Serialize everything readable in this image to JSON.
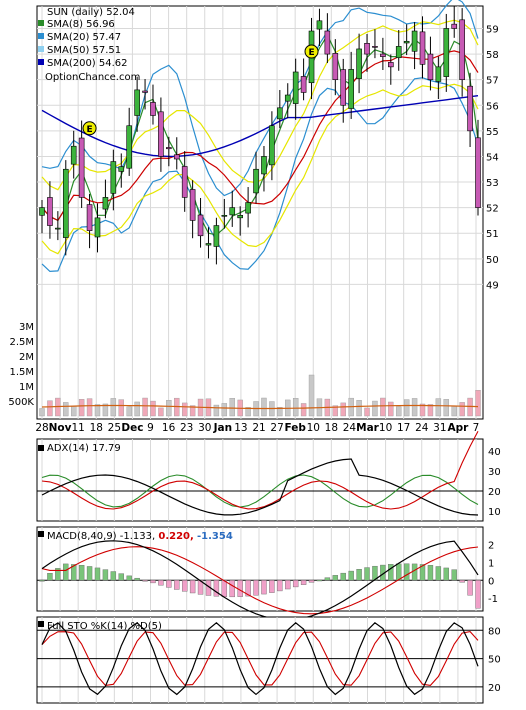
{
  "chart_data": [
    {
      "type": "candlestick",
      "panel": "price",
      "title": "SUN (daily) 52.04",
      "legend": [
        {
          "label": "SMA(8) 56.96",
          "color": "#2a8c2a"
        },
        {
          "label": "SMA(20) 57.47",
          "color": "#2b8ed0"
        },
        {
          "label": "SMA(50) 57.51",
          "color": "#8fd0f0"
        },
        {
          "label": "SMA(200) 54.62",
          "color": "#0000b4"
        }
      ],
      "source_label": "OptionChance.com",
      "ylim": [
        48,
        59.8
      ],
      "yticks": [
        49,
        50,
        51,
        52,
        53,
        54,
        55,
        56,
        57,
        58,
        59
      ],
      "xtick_labels": [
        "28",
        "Nov",
        "11",
        "18",
        "25",
        "Dec",
        "9",
        "16",
        "23",
        "30",
        "Jan",
        "13",
        "21",
        "27",
        "Feb",
        "10",
        "18",
        "24",
        "Mar",
        "10",
        "17",
        "24",
        "31",
        "Apr",
        "7"
      ],
      "close": [
        52.0,
        51.3,
        51.2,
        53.5,
        54.4,
        52.4,
        51.1,
        51.6,
        52.4,
        53.8,
        53.6,
        55.2,
        56.6,
        56.5,
        55.6,
        54.0,
        54.3,
        53.9,
        52.4,
        51.5,
        50.9,
        50.6,
        51.3,
        51.7,
        52.0,
        51.7,
        52.2,
        53.5,
        54.0,
        55.2,
        55.9,
        56.4,
        57.3,
        56.5,
        58.9,
        59.3,
        58.0,
        57.0,
        56.0,
        57.4,
        58.2,
        58.0,
        58.3,
        57.9,
        57.5,
        58.3,
        58.5,
        58.9,
        57.6,
        57.0,
        57.5,
        59.0,
        59.0,
        57.0,
        55.0,
        52.0
      ],
      "events": [
        {
          "label": "E"
        },
        {
          "label": "E"
        }
      ],
      "series": [
        {
          "name": "SMA(8)",
          "last": 56.96
        },
        {
          "name": "SMA(20)",
          "last": 57.47
        },
        {
          "name": "SMA(50)",
          "last": 57.51
        },
        {
          "name": "SMA(200)",
          "last": 54.62
        }
      ]
    },
    {
      "type": "bar",
      "panel": "volume",
      "ylim": [
        0,
        3.2
      ],
      "ytick_labels": [
        "3M",
        "2.5M",
        "2M",
        "1.5M",
        "1M",
        "500K"
      ],
      "yticks": [
        3,
        2.5,
        2,
        1.5,
        1,
        0.5
      ],
      "unit": "M shares"
    },
    {
      "type": "line",
      "panel": "adx",
      "title": "ADX(14) 17.79",
      "ylim": [
        6,
        45
      ],
      "yticks": [
        10,
        20,
        30,
        40
      ],
      "reference_line": 20
    },
    {
      "type": "line",
      "panel": "macd",
      "title_prefix": "MACD(8,40,9) -1.133,",
      "signal_value": "0.220,",
      "hist_value": "-1.354",
      "ylim": [
        -1.6,
        2.8
      ],
      "yticks": [
        -1,
        0,
        1,
        2
      ]
    },
    {
      "type": "line",
      "panel": "stochastic",
      "title": "Full STO %K(14) %D(5)",
      "ylim": [
        5,
        92
      ],
      "yticks": [
        20,
        50,
        80
      ],
      "reference_lines": [
        20,
        50,
        80
      ]
    }
  ],
  "colors": {
    "up_fill": "#3cb33c",
    "down_fill": "#c75ab4",
    "wick": "#000000",
    "bb_upper": "#e6e600",
    "bb_band": "#2b8ed0",
    "sma8": "#2a8c2a",
    "sma20": "#2b8ed0",
    "sma50": "#8fd0f0",
    "sma200": "#0000b4",
    "sma_red": "#cc0000",
    "vol_up": "#c8c8c8",
    "vol_down": "#f0a8b8",
    "vol_avg": "#d06010",
    "adx": "#000000",
    "plus_di": "#2a8c2a",
    "minus_di": "#d00000",
    "macd_line": "#000000",
    "macd_signal": "#d00000",
    "macd_hist_pos": "#7ac47a",
    "macd_hist_neg": "#f0a0c8",
    "sto_k": "#000000",
    "sto_d": "#d00000"
  }
}
